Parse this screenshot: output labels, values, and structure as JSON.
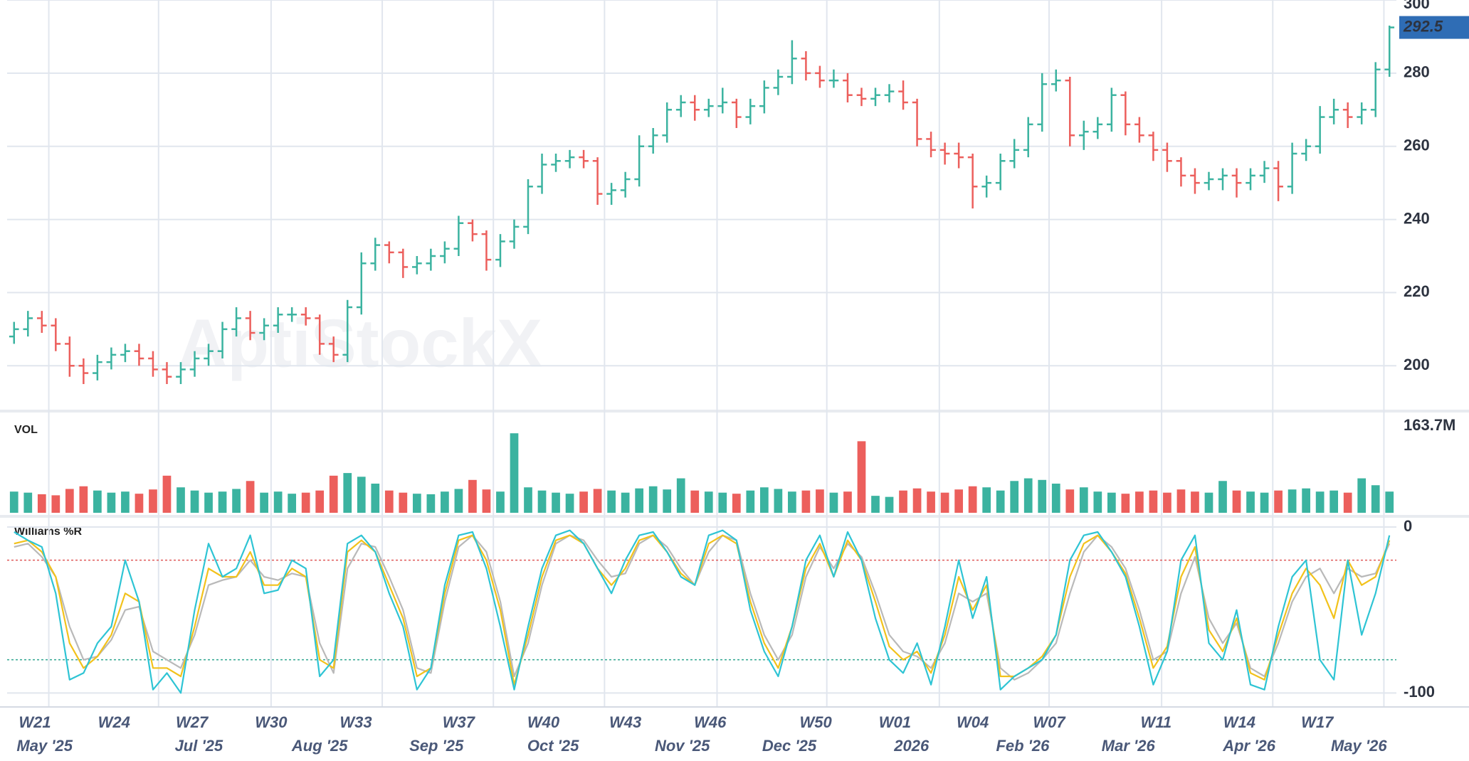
{
  "watermark": "AptiStockX",
  "x_axis": {
    "ticks": [
      {
        "value": 1.5,
        "label": "W21"
      },
      {
        "value": 7.2,
        "label": "W24"
      },
      {
        "value": 12.8,
        "label": "W27"
      },
      {
        "value": 18.5,
        "label": "W30"
      },
      {
        "value": 24.6,
        "label": "W33"
      },
      {
        "value": 32.0,
        "label": "W37"
      },
      {
        "value": 38.1,
        "label": "W40"
      },
      {
        "value": 44.0,
        "label": "W43"
      },
      {
        "value": 50.1,
        "label": "W46"
      },
      {
        "value": 57.7,
        "label": "W50"
      },
      {
        "value": 63.4,
        "label": "W01"
      },
      {
        "value": 69.0,
        "label": "W04"
      },
      {
        "value": 74.5,
        "label": "W07"
      },
      {
        "value": 82.2,
        "label": "W11"
      },
      {
        "value": 88.2,
        "label": "W14"
      },
      {
        "value": 93.8,
        "label": "W17"
      }
    ],
    "month_ticks": [
      {
        "value": 2.2,
        "label": "May '25"
      },
      {
        "value": 13.3,
        "label": "Jul '25"
      },
      {
        "value": 22.0,
        "label": "Aug '25"
      },
      {
        "value": 30.4,
        "label": "Sep '25"
      },
      {
        "value": 38.8,
        "label": "Oct '25"
      },
      {
        "value": 48.1,
        "label": "Nov '25"
      },
      {
        "value": 55.8,
        "label": "Dec '25"
      },
      {
        "value": 64.6,
        "label": "2026"
      },
      {
        "value": 72.6,
        "label": "Feb '26"
      },
      {
        "value": 80.2,
        "label": "Mar '26"
      },
      {
        "value": 88.9,
        "label": "Apr '26"
      },
      {
        "value": 96.8,
        "label": "May '26"
      }
    ],
    "grid": [
      2.5,
      10.4,
      18.5,
      26.5,
      34.5,
      42.5,
      50.6,
      58.5,
      66.6,
      74.5,
      82.6,
      90.6,
      98.6
    ],
    "xlim": [
      -0.5,
      99.5
    ]
  },
  "chart_data": [
    {
      "type": "ohlc",
      "up_color": "#3bb3a0",
      "down_color": "#ec5f5c",
      "last_color": "#2f6db5",
      "ylim": [
        188,
        300
      ],
      "yticks": [
        200,
        220,
        240,
        260,
        280,
        300
      ],
      "grid": true,
      "open": [
        208,
        210,
        213,
        211,
        206,
        200,
        198,
        201,
        203,
        204,
        202,
        199,
        197,
        199,
        202,
        204,
        210,
        213,
        209,
        211,
        214,
        214,
        213,
        206,
        203,
        216,
        228,
        233,
        231,
        227,
        228,
        230,
        232,
        239,
        236,
        229,
        234,
        238,
        249,
        255,
        256,
        257,
        256,
        247,
        248,
        251,
        260,
        263,
        270,
        272,
        270,
        271,
        272,
        268,
        271,
        276,
        279,
        284,
        280,
        278,
        278,
        274,
        273,
        274,
        275,
        272,
        262,
        259,
        258,
        257,
        249,
        250,
        256,
        259,
        266,
        277,
        278,
        263,
        264,
        266,
        274,
        266,
        263,
        259,
        256,
        252,
        250,
        251,
        252,
        250,
        252,
        254,
        249,
        258,
        260,
        268,
        270,
        268,
        270,
        281
      ],
      "high": [
        212,
        215,
        215,
        213,
        208,
        202,
        203,
        205,
        206,
        206,
        204,
        201,
        201,
        204,
        206,
        212,
        216,
        215,
        213,
        216,
        216,
        216,
        214,
        208,
        218,
        231,
        235,
        234,
        232,
        230,
        232,
        234,
        241,
        240,
        237,
        236,
        240,
        251,
        258,
        258,
        259,
        259,
        257,
        250,
        253,
        263,
        265,
        272,
        274,
        274,
        273,
        276,
        273,
        273,
        278,
        281,
        289,
        286,
        282,
        281,
        280,
        276,
        276,
        277,
        278,
        273,
        264,
        261,
        261,
        258,
        252,
        258,
        262,
        268,
        280,
        281,
        279,
        267,
        268,
        276,
        275,
        268,
        264,
        261,
        257,
        254,
        253,
        254,
        254,
        254,
        256,
        256,
        261,
        262,
        271,
        273,
        272,
        272,
        283,
        293
      ],
      "low": [
        206,
        208,
        209,
        204,
        197,
        195,
        196,
        199,
        201,
        200,
        197,
        195,
        195,
        197,
        200,
        202,
        208,
        207,
        207,
        209,
        212,
        211,
        203,
        201,
        201,
        214,
        226,
        228,
        224,
        225,
        226,
        228,
        230,
        234,
        226,
        227,
        232,
        236,
        247,
        253,
        254,
        254,
        244,
        244,
        246,
        249,
        258,
        261,
        268,
        267,
        268,
        269,
        265,
        266,
        269,
        274,
        277,
        278,
        276,
        276,
        272,
        271,
        271,
        272,
        270,
        260,
        257,
        255,
        254,
        243,
        246,
        248,
        254,
        257,
        264,
        275,
        260,
        259,
        262,
        264,
        263,
        261,
        256,
        253,
        249,
        247,
        248,
        248,
        246,
        248,
        250,
        245,
        247,
        256,
        258,
        266,
        265,
        266,
        268,
        279
      ],
      "close": [
        210,
        213,
        211,
        206,
        200,
        198,
        201,
        203,
        204,
        202,
        199,
        197,
        199,
        202,
        204,
        210,
        213,
        209,
        211,
        214,
        214,
        213,
        206,
        203,
        216,
        228,
        233,
        231,
        227,
        228,
        230,
        232,
        239,
        236,
        229,
        234,
        238,
        249,
        255,
        256,
        257,
        256,
        247,
        248,
        251,
        260,
        263,
        270,
        272,
        270,
        271,
        272,
        268,
        271,
        276,
        279,
        284,
        280,
        278,
        278,
        274,
        273,
        274,
        275,
        272,
        262,
        259,
        258,
        257,
        249,
        250,
        256,
        259,
        266,
        277,
        278,
        263,
        264,
        266,
        274,
        266,
        263,
        259,
        256,
        252,
        250,
        251,
        252,
        250,
        252,
        254,
        249,
        258,
        260,
        268,
        270,
        268,
        270,
        281,
        292.5
      ]
    },
    {
      "type": "bar",
      "title": "VOL",
      "ylim": [
        0,
        163.7
      ],
      "yticks": [
        {
          "value": 163.7,
          "label": "163.7M"
        }
      ],
      "values": [
        40,
        38,
        35,
        33,
        45,
        50,
        42,
        38,
        40,
        36,
        44,
        70,
        48,
        42,
        38,
        40,
        45,
        60,
        38,
        40,
        36,
        38,
        42,
        70,
        75,
        68,
        55,
        42,
        38,
        36,
        35,
        40,
        45,
        62,
        44,
        40,
        150,
        48,
        42,
        38,
        36,
        40,
        45,
        42,
        38,
        46,
        50,
        44,
        65,
        42,
        40,
        38,
        36,
        42,
        48,
        45,
        40,
        42,
        44,
        38,
        40,
        135,
        32,
        30,
        42,
        46,
        40,
        38,
        44,
        50,
        48,
        42,
        60,
        65,
        62,
        55,
        44,
        48,
        40,
        38,
        36,
        40,
        42,
        38,
        44,
        40,
        38,
        60,
        42,
        40,
        38,
        42,
        44,
        46,
        40,
        42,
        38,
        65,
        52,
        40
      ]
    },
    {
      "type": "line",
      "title": "Williams %R",
      "ylim": [
        -108,
        6
      ],
      "yticks": [
        0,
        -100
      ],
      "levels": [
        -20,
        -80
      ],
      "level_colors": [
        "#e05a5a",
        "#2fa58f"
      ],
      "series": [
        {
          "color": "#b9b9b9",
          "values": [
            -12,
            -10,
            -18,
            -30,
            -60,
            -80,
            -78,
            -68,
            -50,
            -48,
            -75,
            -80,
            -85,
            -65,
            -35,
            -32,
            -30,
            -20,
            -30,
            -32,
            -28,
            -30,
            -70,
            -88,
            -25,
            -10,
            -12,
            -30,
            -50,
            -85,
            -88,
            -45,
            -12,
            -5,
            -15,
            -45,
            -90,
            -70,
            -35,
            -10,
            -5,
            -8,
            -20,
            -30,
            -28,
            -10,
            -5,
            -12,
            -25,
            -35,
            -15,
            -5,
            -8,
            -40,
            -65,
            -80,
            -65,
            -30,
            -12,
            -25,
            -10,
            -18,
            -40,
            -65,
            -75,
            -78,
            -85,
            -70,
            -40,
            -45,
            -40,
            -85,
            -92,
            -88,
            -80,
            -70,
            -40,
            -15,
            -5,
            -12,
            -25,
            -50,
            -80,
            -75,
            -40,
            -18,
            -55,
            -70,
            -58,
            -85,
            -90,
            -70,
            -45,
            -30,
            -25,
            -40,
            -25,
            -30,
            -28,
            -10
          ]
        },
        {
          "color": "#f2c21b",
          "values": [
            -10,
            -8,
            -15,
            -30,
            -70,
            -85,
            -78,
            -65,
            -40,
            -45,
            -85,
            -85,
            -90,
            -60,
            -25,
            -30,
            -30,
            -15,
            -35,
            -35,
            -25,
            -30,
            -80,
            -85,
            -15,
            -8,
            -15,
            -35,
            -55,
            -90,
            -85,
            -40,
            -8,
            -5,
            -20,
            -50,
            -95,
            -65,
            -30,
            -8,
            -5,
            -10,
            -25,
            -35,
            -25,
            -8,
            -5,
            -15,
            -28,
            -35,
            -10,
            -5,
            -10,
            -45,
            -70,
            -85,
            -60,
            -25,
            -10,
            -30,
            -8,
            -20,
            -45,
            -72,
            -80,
            -75,
            -88,
            -65,
            -30,
            -50,
            -35,
            -90,
            -90,
            -85,
            -78,
            -65,
            -30,
            -10,
            -5,
            -15,
            -28,
            -55,
            -85,
            -72,
            -30,
            -12,
            -62,
            -75,
            -55,
            -88,
            -92,
            -65,
            -40,
            -25,
            -35,
            -55,
            -20,
            -35,
            -30,
            -8
          ]
        },
        {
          "color": "#2ec4d4",
          "values": [
            -3,
            -8,
            -12,
            -40,
            -92,
            -88,
            -70,
            -60,
            -20,
            -45,
            -98,
            -88,
            -100,
            -50,
            -10,
            -30,
            -25,
            -5,
            -40,
            -38,
            -20,
            -25,
            -90,
            -80,
            -10,
            -5,
            -15,
            -40,
            -60,
            -98,
            -85,
            -35,
            -5,
            -3,
            -25,
            -60,
            -98,
            -60,
            -25,
            -5,
            -2,
            -10,
            -25,
            -40,
            -20,
            -5,
            -3,
            -15,
            -30,
            -35,
            -5,
            -2,
            -8,
            -50,
            -75,
            -90,
            -60,
            -20,
            -5,
            -30,
            -3,
            -20,
            -55,
            -80,
            -88,
            -70,
            -95,
            -60,
            -20,
            -55,
            -30,
            -98,
            -90,
            -85,
            -80,
            -65,
            -20,
            -5,
            -3,
            -15,
            -30,
            -60,
            -95,
            -75,
            -20,
            -5,
            -70,
            -80,
            -50,
            -95,
            -98,
            -60,
            -30,
            -20,
            -80,
            -92,
            -20,
            -65,
            -40,
            -5
          ]
        }
      ]
    }
  ]
}
